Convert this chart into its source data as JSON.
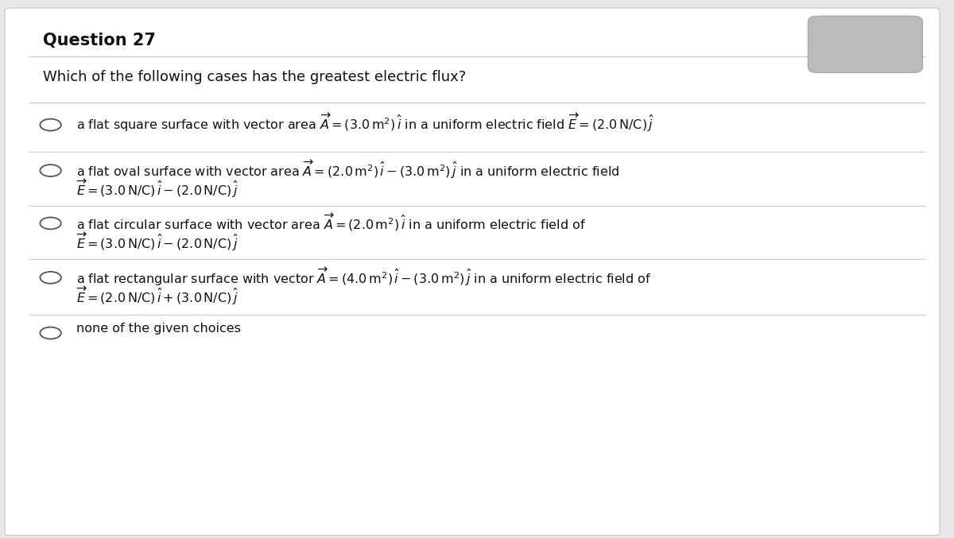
{
  "title": "Question 27",
  "question": "Which of the following cases has the greatest electric flux?",
  "bg_color": "#e8e8e8",
  "panel_color": "#ffffff",
  "title_fontsize": 15,
  "question_fontsize": 13,
  "option_fontsize": 11.5,
  "title_color": "#111111",
  "text_color": "#111111",
  "line_color": "#cccccc"
}
